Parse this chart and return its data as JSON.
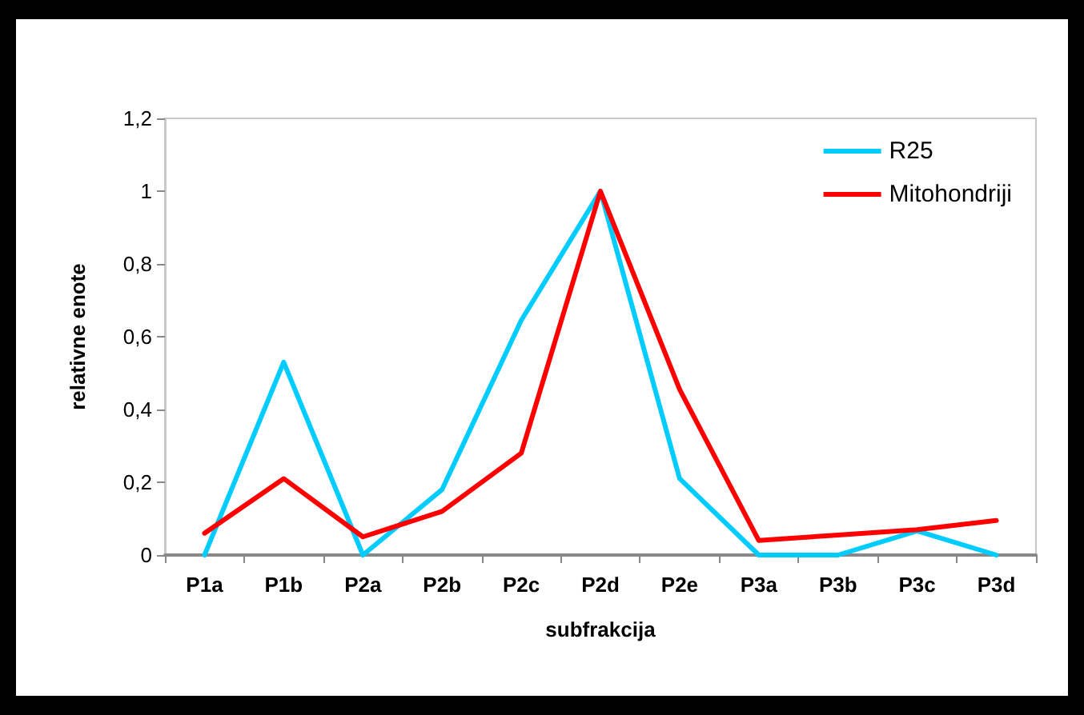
{
  "chart_data": {
    "type": "line",
    "xlabel": "subfrakcija",
    "ylabel": "relativne enote",
    "categories": [
      "P1a",
      "P1b",
      "P2a",
      "P2b",
      "P2c",
      "P2d",
      "P2e",
      "P3a",
      "P3b",
      "P3c",
      "P3d"
    ],
    "series": [
      {
        "name": "R25",
        "color": "#00ccff",
        "values": [
          0,
          0.53,
          0,
          0.18,
          0.645,
          1,
          0.21,
          0,
          0,
          0.066,
          0
        ]
      },
      {
        "name": "Mitohondriji",
        "color": "#ff0000",
        "values": [
          0.06,
          0.21,
          0.05,
          0.12,
          0.28,
          1,
          0.455,
          0.04,
          0.055,
          0.07,
          0.095
        ]
      }
    ],
    "ylim": [
      0,
      1.2
    ],
    "yticks": [
      {
        "value": 0,
        "label": "0"
      },
      {
        "value": 0.2,
        "label": "0,2"
      },
      {
        "value": 0.4,
        "label": "0,4"
      },
      {
        "value": 0.6,
        "label": "0,6"
      },
      {
        "value": 0.8,
        "label": "0,8"
      },
      {
        "value": 1,
        "label": "1"
      },
      {
        "value": 1.2,
        "label": "1,2"
      }
    ],
    "grid": false,
    "legend": "top right",
    "marker": "none",
    "line_style": "solid"
  }
}
